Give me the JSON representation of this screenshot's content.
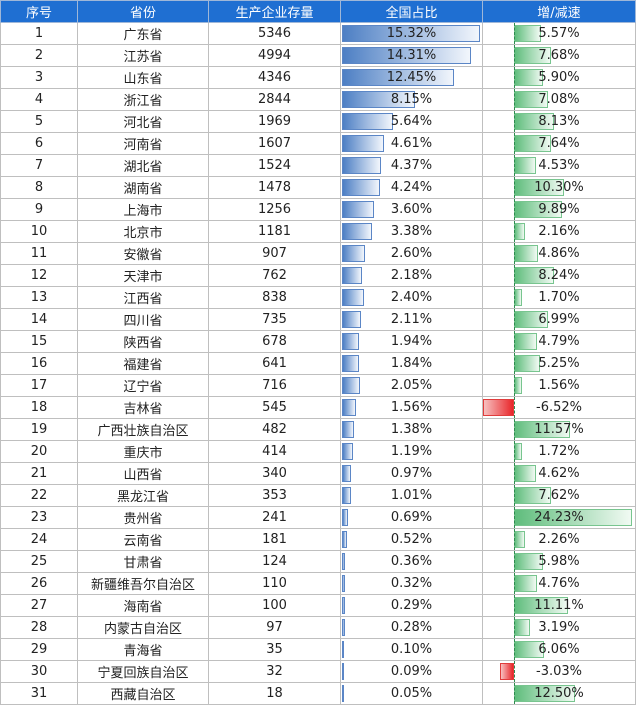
{
  "headers": [
    "序号",
    "省份",
    "生产企业存量",
    "全国占比",
    "增/减速"
  ],
  "rows": [
    {
      "no": "1",
      "province": "广东省",
      "count": "5346",
      "share": "15.32%",
      "growth": "5.57%",
      "share_value": 15.32,
      "growth_value": 5.57
    },
    {
      "no": "2",
      "province": "江苏省",
      "count": "4994",
      "share": "14.31%",
      "growth": "7.68%",
      "share_value": 14.31,
      "growth_value": 7.68
    },
    {
      "no": "3",
      "province": "山东省",
      "count": "4346",
      "share": "12.45%",
      "growth": "5.90%",
      "share_value": 12.45,
      "growth_value": 5.9
    },
    {
      "no": "4",
      "province": "浙江省",
      "count": "2844",
      "share": "8.15%",
      "growth": "7.08%",
      "share_value": 8.15,
      "growth_value": 7.08
    },
    {
      "no": "5",
      "province": "河北省",
      "count": "1969",
      "share": "5.64%",
      "growth": "8.13%",
      "share_value": 5.64,
      "growth_value": 8.13
    },
    {
      "no": "6",
      "province": "河南省",
      "count": "1607",
      "share": "4.61%",
      "growth": "7.64%",
      "share_value": 4.61,
      "growth_value": 7.64
    },
    {
      "no": "7",
      "province": "湖北省",
      "count": "1524",
      "share": "4.37%",
      "growth": "4.53%",
      "share_value": 4.37,
      "growth_value": 4.53
    },
    {
      "no": "8",
      "province": "湖南省",
      "count": "1478",
      "share": "4.24%",
      "growth": "10.30%",
      "share_value": 4.24,
      "growth_value": 10.3
    },
    {
      "no": "9",
      "province": "上海市",
      "count": "1256",
      "share": "3.60%",
      "growth": "9.89%",
      "share_value": 3.6,
      "growth_value": 9.89
    },
    {
      "no": "10",
      "province": "北京市",
      "count": "1181",
      "share": "3.38%",
      "growth": "2.16%",
      "share_value": 3.38,
      "growth_value": 2.16
    },
    {
      "no": "11",
      "province": "安徽省",
      "count": "907",
      "share": "2.60%",
      "growth": "4.86%",
      "share_value": 2.6,
      "growth_value": 4.86
    },
    {
      "no": "12",
      "province": "天津市",
      "count": "762",
      "share": "2.18%",
      "growth": "8.24%",
      "share_value": 2.18,
      "growth_value": 8.24
    },
    {
      "no": "13",
      "province": "江西省",
      "count": "838",
      "share": "2.40%",
      "growth": "1.70%",
      "share_value": 2.4,
      "growth_value": 1.7
    },
    {
      "no": "14",
      "province": "四川省",
      "count": "735",
      "share": "2.11%",
      "growth": "6.99%",
      "share_value": 2.11,
      "growth_value": 6.99
    },
    {
      "no": "15",
      "province": "陕西省",
      "count": "678",
      "share": "1.94%",
      "growth": "4.79%",
      "share_value": 1.94,
      "growth_value": 4.79
    },
    {
      "no": "16",
      "province": "福建省",
      "count": "641",
      "share": "1.84%",
      "growth": "5.25%",
      "share_value": 1.84,
      "growth_value": 5.25
    },
    {
      "no": "17",
      "province": "辽宁省",
      "count": "716",
      "share": "2.05%",
      "growth": "1.56%",
      "share_value": 2.05,
      "growth_value": 1.56
    },
    {
      "no": "18",
      "province": "吉林省",
      "count": "545",
      "share": "1.56%",
      "growth": "-6.52%",
      "share_value": 1.56,
      "growth_value": -6.52
    },
    {
      "no": "19",
      "province": "广西壮族自治区",
      "count": "482",
      "share": "1.38%",
      "growth": "11.57%",
      "share_value": 1.38,
      "growth_value": 11.57
    },
    {
      "no": "20",
      "province": "重庆市",
      "count": "414",
      "share": "1.19%",
      "growth": "1.72%",
      "share_value": 1.19,
      "growth_value": 1.72
    },
    {
      "no": "21",
      "province": "山西省",
      "count": "340",
      "share": "0.97%",
      "growth": "4.62%",
      "share_value": 0.97,
      "growth_value": 4.62
    },
    {
      "no": "22",
      "province": "黑龙江省",
      "count": "353",
      "share": "1.01%",
      "growth": "7.62%",
      "share_value": 1.01,
      "growth_value": 7.62
    },
    {
      "no": "23",
      "province": "贵州省",
      "count": "241",
      "share": "0.69%",
      "growth": "24.23%",
      "share_value": 0.69,
      "growth_value": 24.23
    },
    {
      "no": "24",
      "province": "云南省",
      "count": "181",
      "share": "0.52%",
      "growth": "2.26%",
      "share_value": 0.52,
      "growth_value": 2.26
    },
    {
      "no": "25",
      "province": "甘肃省",
      "count": "124",
      "share": "0.36%",
      "growth": "5.98%",
      "share_value": 0.36,
      "growth_value": 5.98
    },
    {
      "no": "26",
      "province": "新疆维吾尔自治区",
      "count": "110",
      "share": "0.32%",
      "growth": "4.76%",
      "share_value": 0.32,
      "growth_value": 4.76
    },
    {
      "no": "27",
      "province": "海南省",
      "count": "100",
      "share": "0.29%",
      "growth": "11.11%",
      "share_value": 0.29,
      "growth_value": 11.11
    },
    {
      "no": "28",
      "province": "内蒙古自治区",
      "count": "97",
      "share": "0.28%",
      "growth": "3.19%",
      "share_value": 0.28,
      "growth_value": 3.19
    },
    {
      "no": "29",
      "province": "青海省",
      "count": "35",
      "share": "0.10%",
      "growth": "6.06%",
      "share_value": 0.1,
      "growth_value": 6.06
    },
    {
      "no": "30",
      "province": "宁夏回族自治区",
      "count": "32",
      "share": "0.09%",
      "growth": "-3.03%",
      "share_value": 0.09,
      "growth_value": -3.03
    },
    {
      "no": "31",
      "province": "西藏自治区",
      "count": "18",
      "share": "0.05%",
      "growth": "12.50%",
      "share_value": 0.05,
      "growth_value": 12.5
    }
  ],
  "colors": {
    "header_background": "#1f6fd2",
    "share_bar": "#4d7fc4",
    "growth_positive_bar": "#5fbd7c",
    "growth_negative_bar": "#e8262a"
  }
}
